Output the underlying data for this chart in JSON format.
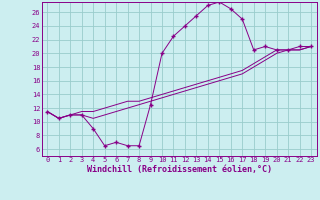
{
  "xlabel": "Windchill (Refroidissement éolien,°C)",
  "xlim": [
    -0.5,
    23.5
  ],
  "ylim": [
    5.0,
    27.5
  ],
  "yticks": [
    6,
    8,
    10,
    12,
    14,
    16,
    18,
    20,
    22,
    24,
    26
  ],
  "xticks": [
    0,
    1,
    2,
    3,
    4,
    5,
    6,
    7,
    8,
    9,
    10,
    11,
    12,
    13,
    14,
    15,
    16,
    17,
    18,
    19,
    20,
    21,
    22,
    23
  ],
  "bg_color": "#cceef0",
  "grid_color": "#99cccc",
  "line_color": "#880088",
  "line1_x": [
    0,
    1,
    2,
    3,
    4,
    5,
    6,
    7,
    8,
    9,
    10,
    11,
    12,
    13,
    14,
    15,
    16,
    17,
    18,
    19,
    20,
    21,
    22,
    23
  ],
  "line1_y": [
    11.5,
    10.5,
    11.0,
    11.0,
    9.0,
    6.5,
    7.0,
    6.5,
    6.5,
    12.5,
    20.0,
    22.5,
    24.0,
    25.5,
    27.0,
    27.5,
    26.5,
    25.0,
    20.5,
    21.0,
    20.5,
    20.5,
    21.0,
    21.0
  ],
  "line2_x": [
    0,
    1,
    2,
    3,
    4,
    5,
    6,
    7,
    8,
    9,
    10,
    11,
    12,
    13,
    14,
    15,
    16,
    17,
    18,
    19,
    20,
    21,
    22,
    23
  ],
  "line2_y": [
    11.5,
    10.5,
    11.0,
    11.0,
    10.5,
    11.0,
    11.5,
    12.0,
    12.5,
    13.0,
    13.5,
    14.0,
    14.5,
    15.0,
    15.5,
    16.0,
    16.5,
    17.0,
    18.0,
    19.0,
    20.0,
    20.5,
    20.5,
    21.0
  ],
  "line3_x": [
    0,
    1,
    2,
    3,
    4,
    5,
    6,
    7,
    8,
    9,
    10,
    11,
    12,
    13,
    14,
    15,
    16,
    17,
    18,
    19,
    20,
    21,
    22,
    23
  ],
  "line3_y": [
    11.5,
    10.5,
    11.0,
    11.5,
    11.5,
    12.0,
    12.5,
    13.0,
    13.0,
    13.5,
    14.0,
    14.5,
    15.0,
    15.5,
    16.0,
    16.5,
    17.0,
    17.5,
    18.5,
    19.5,
    20.5,
    20.5,
    20.5,
    21.0
  ],
  "tick_fontsize": 5.0,
  "xlabel_fontsize": 6.0,
  "marker_size": 2.0,
  "line_width": 0.7
}
